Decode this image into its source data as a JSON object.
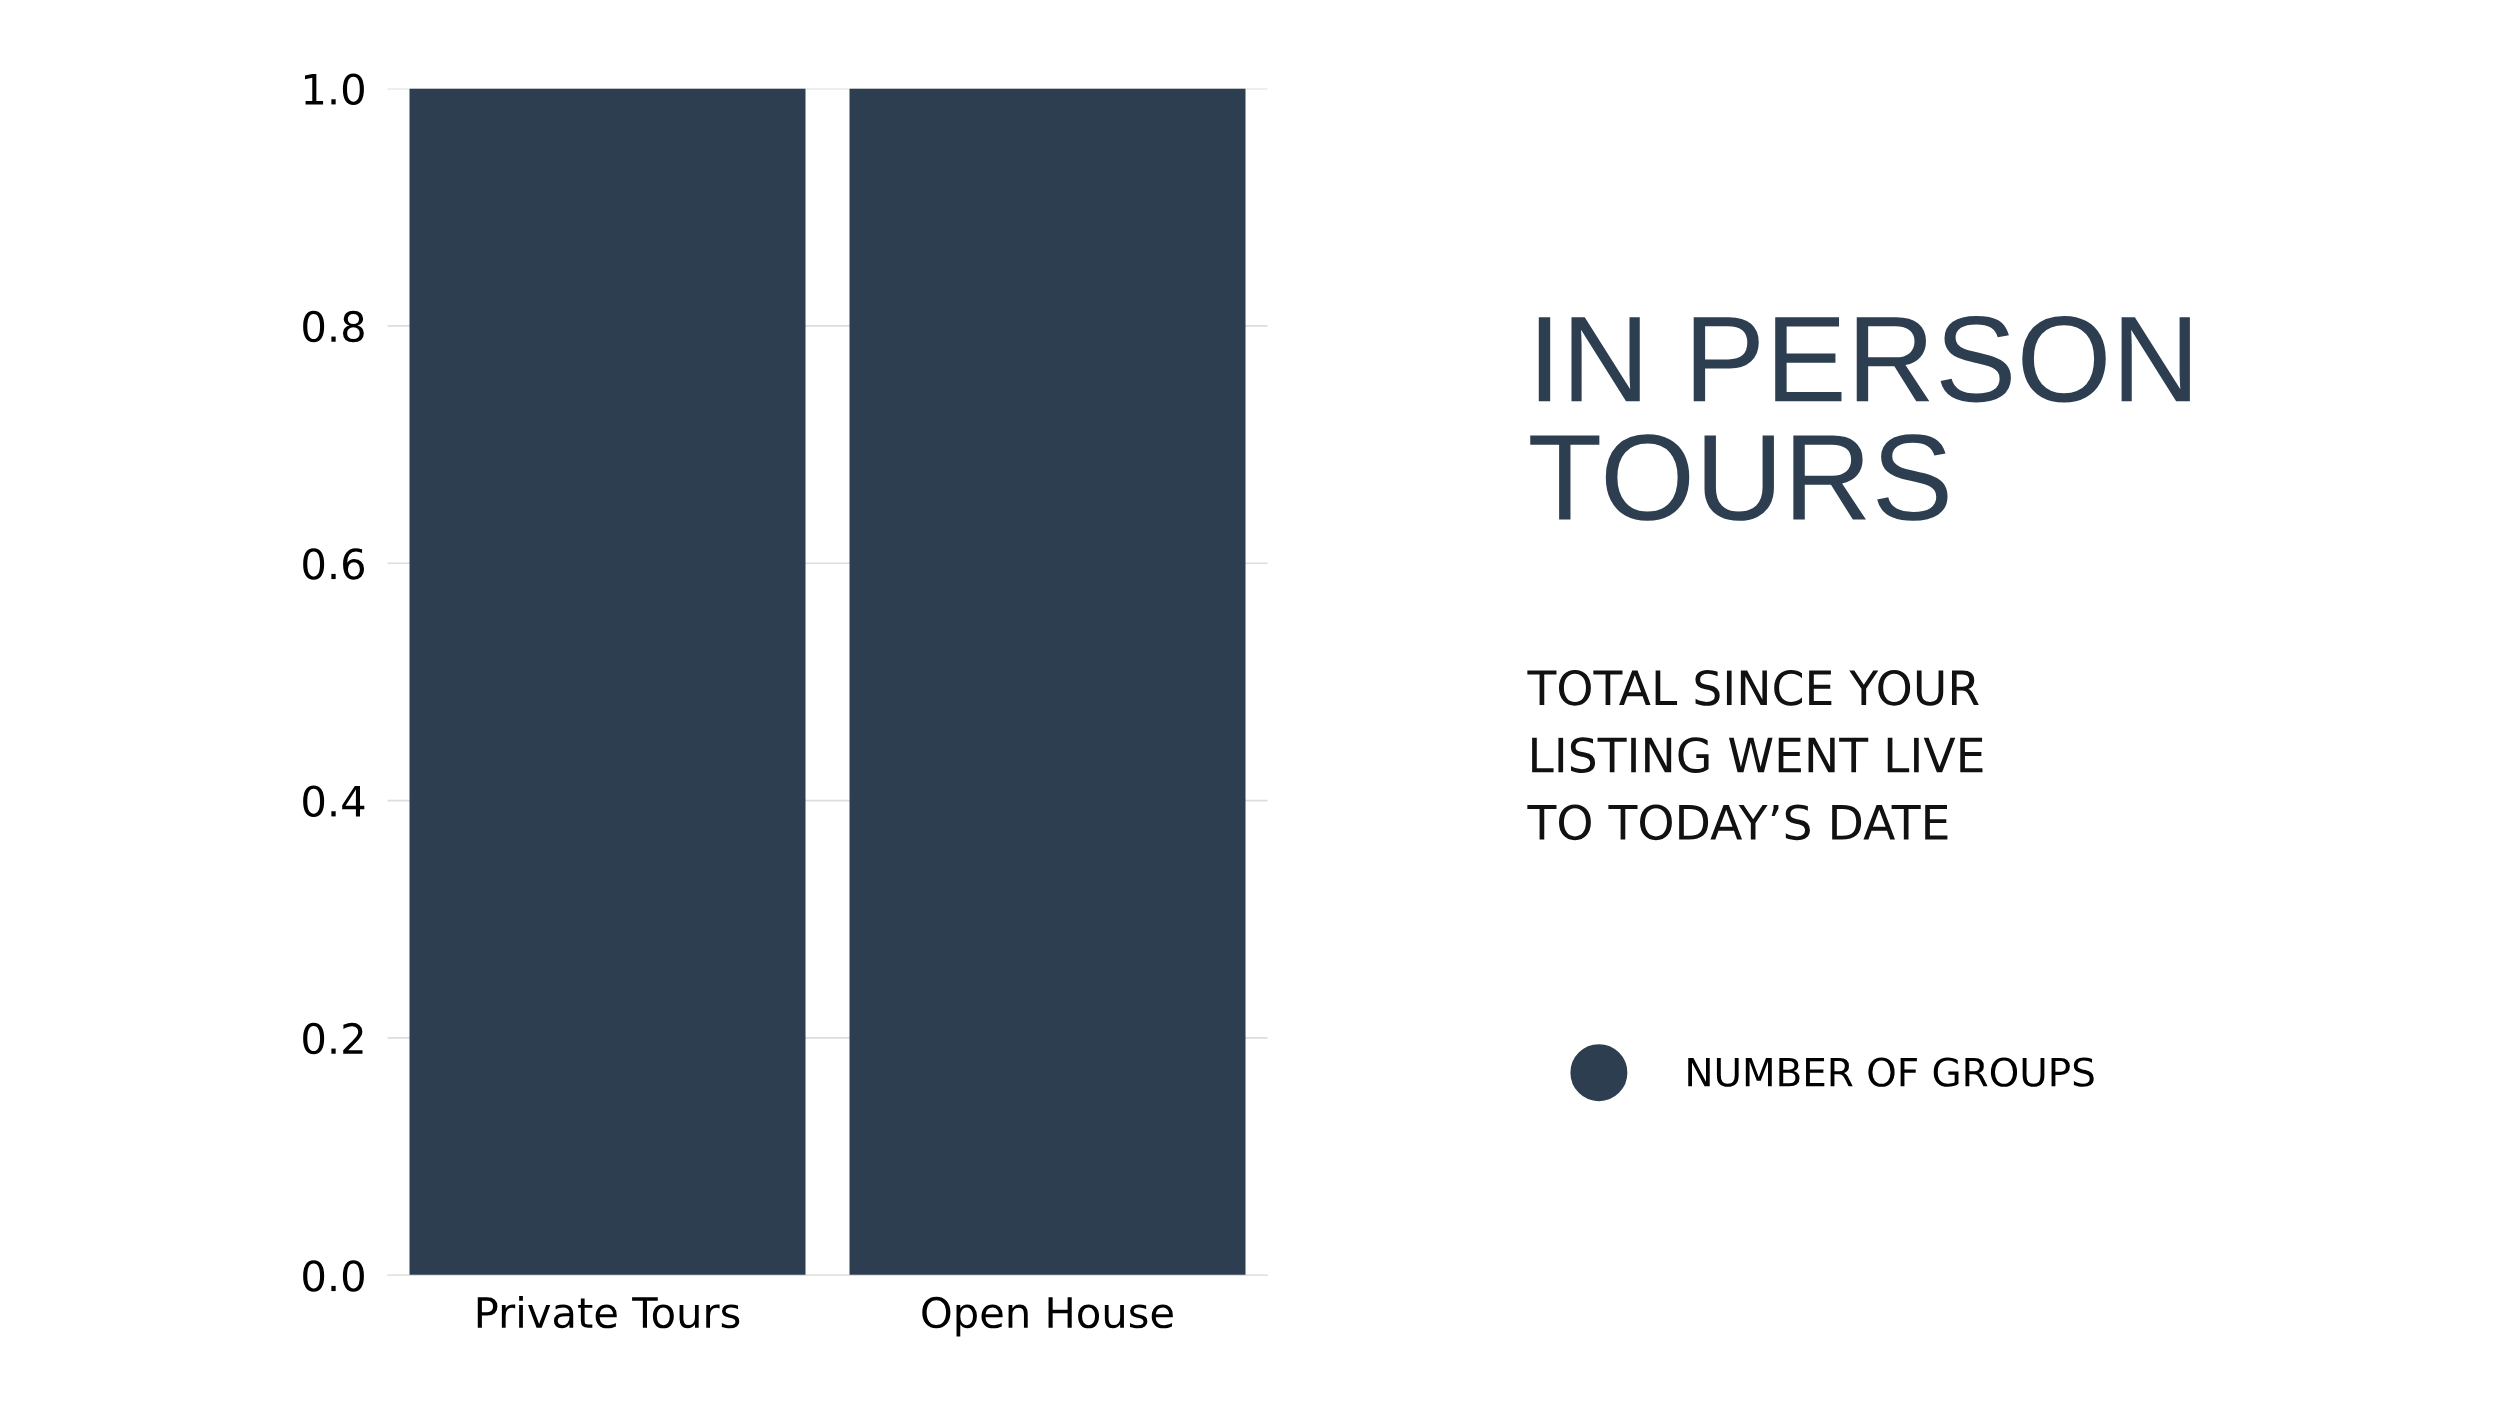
{
  "chart_data": {
    "type": "bar",
    "title": "IN PERSON\nTOURS",
    "subtitle": "TOTAL SINCE YOUR\nLISTING WENT LIVE\nTO TODAY’S DATE",
    "categories": [
      "Private Tours",
      "Open House"
    ],
    "series": [
      {
        "name": "NUMBER OF GROUPS",
        "color": "#2c3e50",
        "values": [
          1,
          1
        ]
      }
    ],
    "ylim": [
      0,
      1
    ],
    "yticks": [
      {
        "value": 0,
        "label": "0.0"
      },
      0.2,
      0.4,
      0.6,
      0.8,
      {
        "value": 1,
        "label": "1.0"
      }
    ],
    "grid": "y",
    "legend": "right"
  }
}
